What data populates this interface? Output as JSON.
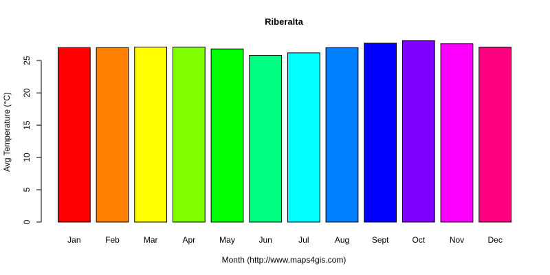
{
  "chart_data": {
    "type": "bar",
    "title": "Riberalta",
    "xlabel": "Month (http://www.maps4gis.com)",
    "ylabel": "Avg Temperature (°C)",
    "categories": [
      "Jan",
      "Feb",
      "Mar",
      "Apr",
      "May",
      "Jun",
      "Jul",
      "Aug",
      "Sept",
      "Oct",
      "Nov",
      "Dec"
    ],
    "values": [
      27.0,
      27.0,
      27.1,
      27.1,
      26.8,
      25.8,
      26.2,
      27.0,
      27.7,
      28.1,
      27.6,
      27.1
    ],
    "colors": [
      "#FF0000",
      "#FF8000",
      "#FFFF00",
      "#80FF00",
      "#00FF00",
      "#00FF80",
      "#00FFFF",
      "#0080FF",
      "#0000FF",
      "#8000FF",
      "#FF00FF",
      "#FF0080"
    ],
    "ylim": [
      0,
      28.1
    ],
    "yticks": [
      "0",
      "5",
      "10",
      "15",
      "20",
      "25"
    ],
    "grid": false,
    "legend": "none"
  }
}
